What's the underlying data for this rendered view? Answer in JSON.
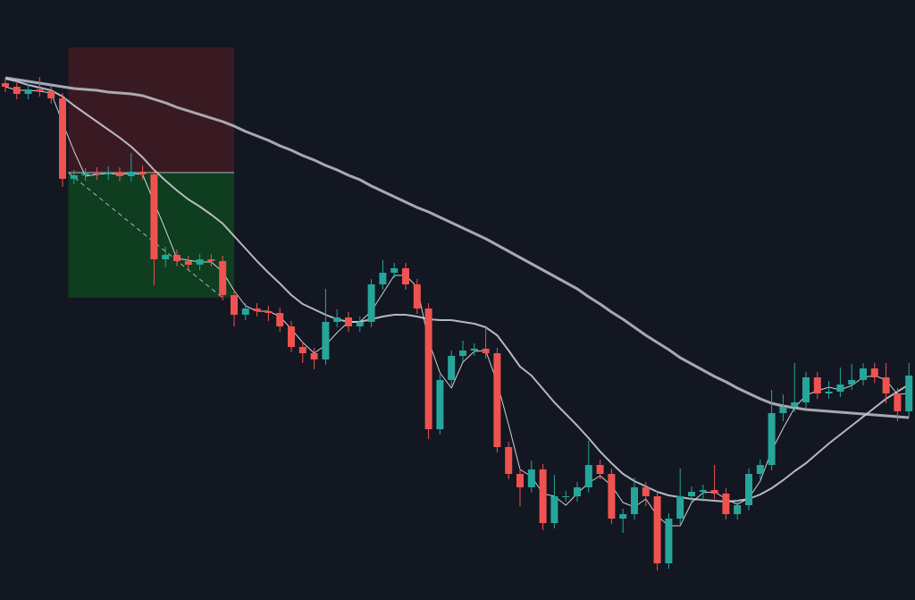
{
  "chart_data": {
    "type": "candlestick",
    "background": "#131722",
    "up_color": "#26a69a",
    "down_color": "#ef5350",
    "ylim": [
      0,
      671
    ],
    "open": [
      578,
      574,
      566,
      571,
      569,
      561,
      471,
      475,
      477,
      476,
      478,
      474,
      479,
      476,
      381,
      386,
      379,
      375,
      381,
      379,
      341,
      319,
      326,
      323,
      321,
      306,
      283,
      276,
      269,
      311,
      316,
      306,
      311,
      353,
      366,
      371,
      353,
      326,
      191,
      246,
      273,
      279,
      281,
      276,
      171,
      141,
      126,
      146,
      86,
      116,
      116,
      126,
      151,
      141,
      91,
      96,
      126,
      116,
      41,
      91,
      116,
      121,
      123,
      119,
      96,
      106,
      141,
      151,
      209,
      216,
      221,
      249,
      231,
      233,
      241,
      246,
      259,
      249,
      231,
      211
    ],
    "high": [
      584,
      580,
      577,
      585,
      575,
      567,
      481,
      483,
      484,
      485,
      484,
      500,
      486,
      482,
      395,
      392,
      385,
      387,
      387,
      385,
      347,
      332,
      332,
      329,
      327,
      312,
      289,
      282,
      348,
      325,
      322,
      317,
      359,
      380,
      377,
      377,
      359,
      332,
      252,
      279,
      290,
      287,
      305,
      282,
      177,
      147,
      156,
      152,
      140,
      122,
      132,
      178,
      157,
      147,
      102,
      137,
      132,
      122,
      97,
      147,
      127,
      129,
      151,
      125,
      112,
      147,
      157,
      235,
      230,
      265,
      255,
      255,
      245,
      260,
      264,
      265,
      265,
      265,
      237,
      265
    ],
    "low": [
      568,
      560,
      560,
      563,
      555,
      462,
      465,
      469,
      470,
      470,
      468,
      468,
      470,
      352,
      372,
      373,
      369,
      369,
      373,
      335,
      306,
      313,
      317,
      312,
      300,
      277,
      265,
      258,
      263,
      305,
      300,
      300,
      305,
      347,
      360,
      347,
      320,
      180,
      185,
      240,
      267,
      273,
      270,
      165,
      135,
      105,
      120,
      78,
      80,
      110,
      110,
      120,
      135,
      85,
      75,
      90,
      105,
      33,
      35,
      85,
      110,
      110,
      113,
      90,
      90,
      100,
      135,
      145,
      200,
      210,
      215,
      225,
      225,
      227,
      235,
      240,
      243,
      220,
      200,
      205
    ],
    "close": [
      574,
      566,
      571,
      569,
      561,
      471,
      475,
      477,
      476,
      478,
      474,
      479,
      476,
      381,
      386,
      379,
      375,
      381,
      379,
      341,
      319,
      326,
      323,
      321,
      306,
      283,
      276,
      269,
      311,
      316,
      306,
      311,
      353,
      366,
      371,
      353,
      326,
      191,
      246,
      273,
      279,
      281,
      276,
      171,
      141,
      126,
      146,
      86,
      116,
      116,
      126,
      151,
      141,
      91,
      96,
      126,
      116,
      41,
      91,
      116,
      121,
      123,
      119,
      96,
      106,
      141,
      151,
      209,
      216,
      221,
      249,
      231,
      233,
      241,
      246,
      259,
      249,
      231,
      211,
      251
    ],
    "overlays": [
      {
        "color": "#b8b9c2",
        "width": 3,
        "values": [
          584,
          582,
          580,
          578,
          576,
          574,
          572,
          571,
          570,
          568,
          567,
          566,
          564,
          560,
          556,
          551,
          547,
          543,
          539,
          535,
          530,
          524,
          519,
          514,
          508,
          503,
          497,
          492,
          486,
          481,
          475,
          470,
          463,
          457,
          451,
          445,
          439,
          434,
          428,
          422,
          416,
          410,
          404,
          397,
          390,
          383,
          376,
          369,
          362,
          355,
          348,
          339,
          331,
          322,
          314,
          305,
          296,
          288,
          280,
          271,
          264,
          257,
          250,
          244,
          237,
          231,
          225,
          220,
          217,
          215,
          213,
          212,
          211,
          210,
          209,
          208,
          207,
          206,
          205,
          204
        ]
      },
      {
        "color": "#c9cad2",
        "width": 2,
        "values": [
          583,
          580,
          576,
          573,
          570,
          563,
          553,
          544,
          535,
          526,
          517,
          507,
          495,
          481,
          469,
          458,
          448,
          440,
          431,
          421,
          407,
          393,
          379,
          366,
          354,
          341,
          331,
          325,
          319,
          314,
          311,
          311,
          314,
          317,
          319,
          319,
          317,
          314,
          313,
          313,
          311,
          309,
          305,
          296,
          279,
          261,
          251,
          236,
          221,
          208,
          195,
          181,
          166,
          153,
          141,
          133,
          127,
          121,
          117,
          115,
          113,
          112,
          111,
          110,
          111,
          113,
          118,
          125,
          134,
          144,
          153,
          164,
          175,
          185,
          195,
          205,
          215,
          225,
          233,
          241
        ]
      },
      {
        "color": "#e6e6ea",
        "width": 1,
        "values": [
          574,
          570,
          570,
          569,
          567,
          534,
          502,
          474,
          476,
          477,
          476,
          477,
          476,
          445,
          414,
          382,
          380,
          378,
          378,
          367,
          346,
          329,
          323,
          323,
          317,
          303,
          288,
          276,
          285,
          299,
          311,
          311,
          323,
          343,
          363,
          363,
          350,
          290,
          254,
          237,
          266,
          278,
          279,
          243,
          196,
          146,
          138,
          119,
          116,
          106,
          119,
          131,
          139,
          128,
          109,
          104,
          113,
          94,
          83,
          83,
          109,
          120,
          121,
          113,
          107,
          114,
          133,
          167,
          192,
          215,
          229,
          234,
          238,
          235,
          240,
          249,
          251,
          246,
          230,
          231
        ]
      }
    ],
    "position": {
      "x_start": 5.5,
      "x_end": 20,
      "entry": 478,
      "stop": 618,
      "target": 338,
      "stop_color": "#3a1a22",
      "target_color": "#0e3d1f",
      "line_color": "#b0b3bd"
    }
  }
}
